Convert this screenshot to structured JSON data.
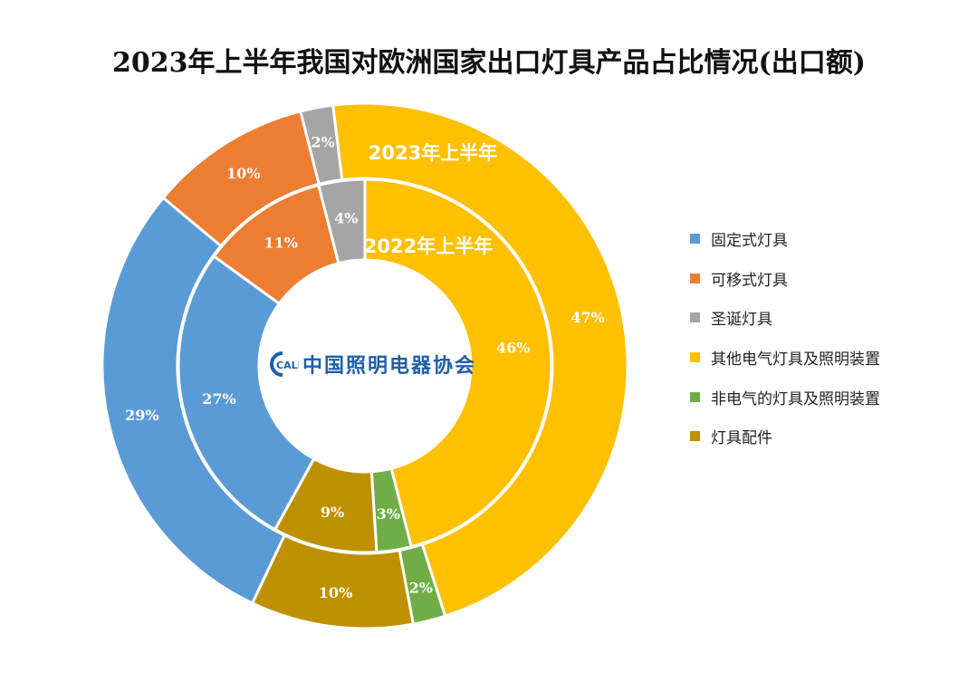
{
  "chart_data": {
    "type": "donut",
    "title": "2023年上半年我国对欧洲国家出口灯具产品占比情况(出口额)",
    "categories": [
      "固定式灯具",
      "可移式灯具",
      "圣诞灯具",
      "其他电气灯具及照明装置",
      "非电气的灯具及照明装置",
      "灯具配件"
    ],
    "colors": [
      "#5b9bd5",
      "#ed7d31",
      "#a5a5a5",
      "#ffc000",
      "#70ad47",
      "#bf9000"
    ],
    "series": [
      {
        "name": "2023年上半年",
        "ring": "outer",
        "values": [
          29,
          10,
          2,
          47,
          2,
          10
        ],
        "labels": [
          "29%",
          "10%",
          "2%",
          "47%",
          "2%",
          "10%"
        ]
      },
      {
        "name": "2022年上半年",
        "ring": "inner",
        "values": [
          27,
          11,
          4,
          46,
          3,
          9
        ],
        "labels": [
          "27%",
          "11%",
          "4%",
          "46%",
          "3%",
          "9%"
        ]
      }
    ],
    "legend_position": "right"
  },
  "watermark_text": "中国照明电器协会",
  "watermark_mark": "CALI"
}
